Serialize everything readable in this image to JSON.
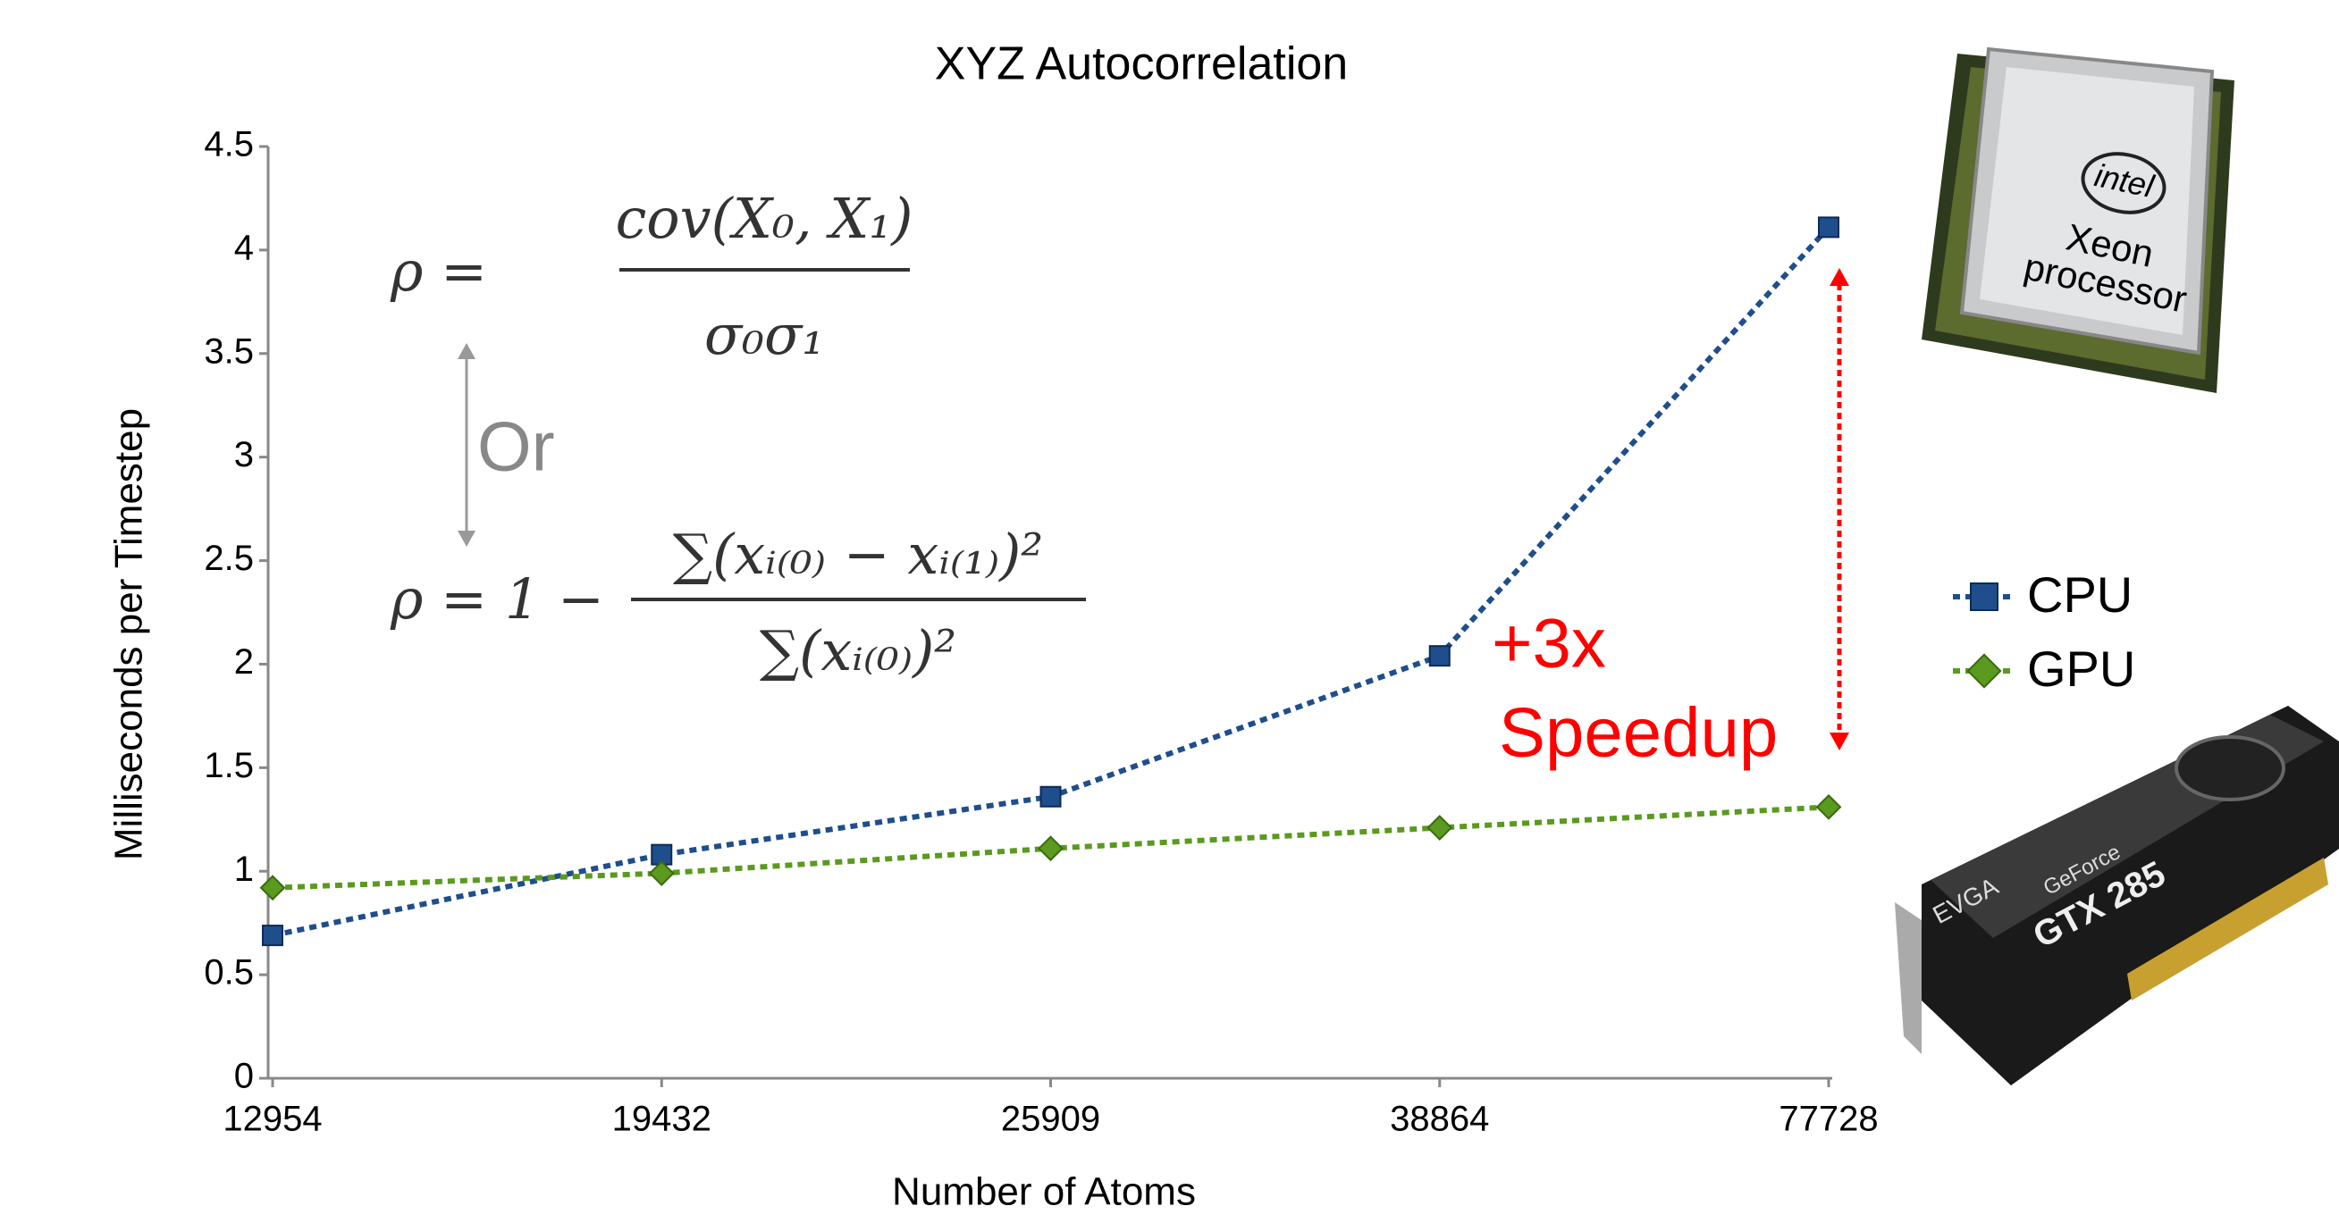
{
  "chart_data": {
    "type": "line",
    "title": "XYZ Autocorrelation",
    "x_label": "Number of Atoms",
    "y_label": "Milliseconds per Timestep",
    "categories": [
      "12954",
      "19432",
      "25909",
      "38864",
      "77728"
    ],
    "series": [
      {
        "name": "CPU",
        "color": "#1f4e8c",
        "marker": "square",
        "values": [
          0.69,
          1.08,
          1.36,
          2.04,
          4.11
        ]
      },
      {
        "name": "GPU",
        "color": "#5a9a1e",
        "marker": "diamond",
        "values": [
          0.92,
          0.99,
          1.11,
          1.21,
          1.31
        ]
      }
    ],
    "ylim": [
      0,
      4.5
    ],
    "yticks": [
      0,
      0.5,
      1,
      1.5,
      2,
      2.5,
      3,
      3.5,
      4,
      4.5
    ],
    "grid": false,
    "legend": "right",
    "annotations": {
      "speedup": {
        "lines": [
          "+3x",
          "Speedup"
        ],
        "color": "#ff0000"
      },
      "or": "Or",
      "formula_1": {
        "lhs": "ρ =",
        "numerator": "cov(X₀, X₁)",
        "denominator": "σ₀σ₁"
      },
      "formula_2": {
        "lhs": "ρ = 1 −",
        "numerator": "∑(xᵢ₍₀₎ − xᵢ₍₁₎)²",
        "denominator": "∑(xᵢ₍₀₎)²"
      }
    },
    "image_labels": {
      "cpu": [
        "intel",
        "Xeon",
        "processor"
      ],
      "gpu": [
        "EVGA",
        "GeForce",
        "GTX 285"
      ]
    }
  }
}
